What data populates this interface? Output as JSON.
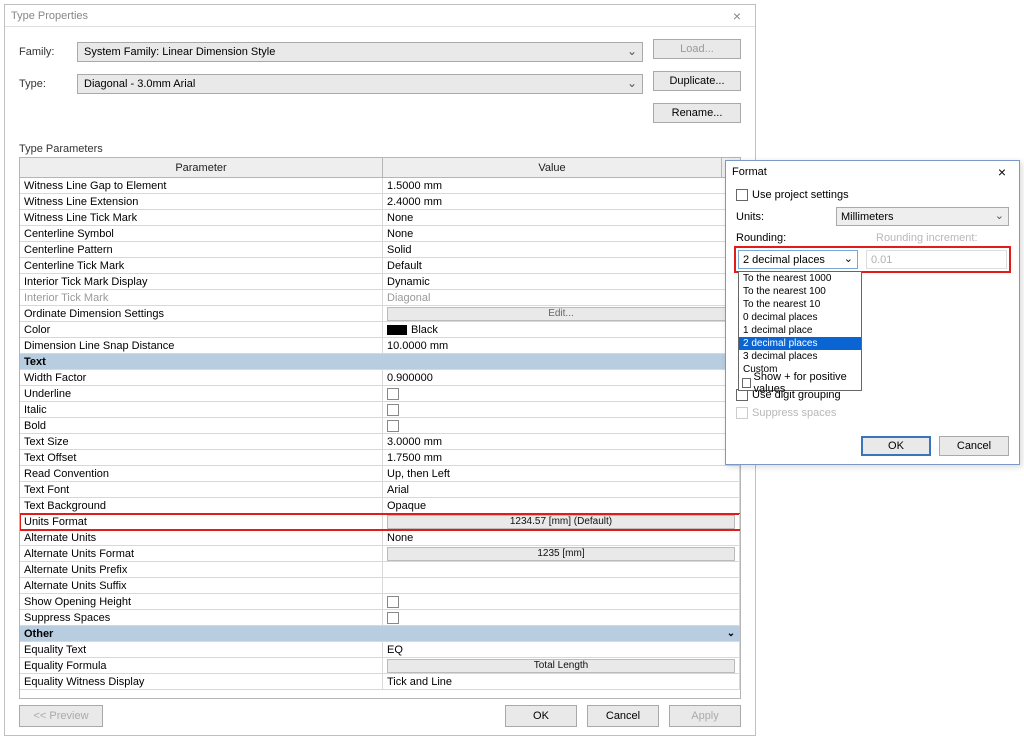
{
  "tp": {
    "title": "Type Properties",
    "family_label": "Family:",
    "type_label": "Type:",
    "family_value": "System Family: Linear Dimension Style",
    "type_value": "Diagonal - 3.0mm Arial",
    "btn_load": "Load...",
    "btn_duplicate": "Duplicate...",
    "btn_rename": "Rename...",
    "params_label": "Type Parameters",
    "th_param": "Parameter",
    "th_value": "Value",
    "btn_preview": "<< Preview",
    "btn_ok": "OK",
    "btn_cancel": "Cancel",
    "btn_apply": "Apply",
    "rows": [
      {
        "k": "row",
        "p": "Witness Line Gap to Element",
        "v": "1.5000 mm"
      },
      {
        "k": "row",
        "p": "Witness Line Extension",
        "v": "2.4000 mm"
      },
      {
        "k": "row",
        "p": "Witness Line Tick Mark",
        "v": "None"
      },
      {
        "k": "row",
        "p": "Centerline Symbol",
        "v": "None"
      },
      {
        "k": "row",
        "p": "Centerline Pattern",
        "v": "Solid"
      },
      {
        "k": "row",
        "p": "Centerline Tick Mark",
        "v": "Default"
      },
      {
        "k": "row",
        "p": "Interior Tick Mark Display",
        "v": "Dynamic"
      },
      {
        "k": "rowdis",
        "p": "Interior Tick Mark",
        "v": "Diagonal"
      },
      {
        "k": "rowbtn",
        "p": "Ordinate Dimension Settings",
        "v": "Edit..."
      },
      {
        "k": "rowcolor",
        "p": "Color",
        "v": "Black"
      },
      {
        "k": "row",
        "p": "Dimension Line Snap Distance",
        "v": "10.0000 mm"
      },
      {
        "k": "group",
        "p": "Text"
      },
      {
        "k": "row",
        "p": "Width Factor",
        "v": "0.900000"
      },
      {
        "k": "rowcb",
        "p": "Underline",
        "v": ""
      },
      {
        "k": "rowcb",
        "p": "Italic",
        "v": ""
      },
      {
        "k": "rowcb",
        "p": "Bold",
        "v": ""
      },
      {
        "k": "row",
        "p": "Text Size",
        "v": "3.0000 mm"
      },
      {
        "k": "row",
        "p": "Text Offset",
        "v": "1.7500 mm"
      },
      {
        "k": "row",
        "p": "Read Convention",
        "v": "Up, then Left"
      },
      {
        "k": "row",
        "p": "Text Font",
        "v": "Arial"
      },
      {
        "k": "row",
        "p": "Text Background",
        "v": "Opaque"
      },
      {
        "k": "rowhlbtn",
        "p": "Units Format",
        "v": "1234.57 [mm] (Default)"
      },
      {
        "k": "row",
        "p": "Alternate Units",
        "v": "None"
      },
      {
        "k": "rowbtn2",
        "p": "Alternate Units Format",
        "v": "1235 [mm]"
      },
      {
        "k": "row",
        "p": "Alternate Units Prefix",
        "v": ""
      },
      {
        "k": "row",
        "p": "Alternate Units Suffix",
        "v": ""
      },
      {
        "k": "rowcb",
        "p": "Show Opening Height",
        "v": ""
      },
      {
        "k": "rowcb",
        "p": "Suppress Spaces",
        "v": ""
      },
      {
        "k": "group",
        "p": "Other"
      },
      {
        "k": "row",
        "p": "Equality Text",
        "v": "EQ"
      },
      {
        "k": "rowbtn2",
        "p": "Equality Formula",
        "v": "Total Length"
      },
      {
        "k": "row",
        "p": "Equality Witness Display",
        "v": "Tick and Line"
      }
    ]
  },
  "fmt": {
    "title": "Format",
    "use_project": "Use project settings",
    "units_label": "Units:",
    "units_value": "Millimeters",
    "rounding_label": "Rounding:",
    "rounding_value": "2 decimal places",
    "rounding_incr_label": "Rounding increment:",
    "rounding_incr_value": "0.01",
    "options": [
      "To the nearest 1000",
      "To the nearest 100",
      "To the nearest 10",
      "0 decimal places",
      "1 decimal place",
      "2 decimal places",
      "3 decimal places",
      "Custom"
    ],
    "selected_index": 5,
    "show_plus": "Show + for positive values",
    "digit_grouping": "Use digit grouping",
    "suppress_spaces": "Suppress spaces",
    "btn_ok": "OK",
    "btn_cancel": "Cancel"
  },
  "colors": {
    "highlight": "#e21b1b",
    "group_bg": "#b8cde0",
    "dropdown_sel": "#0a64d1"
  }
}
